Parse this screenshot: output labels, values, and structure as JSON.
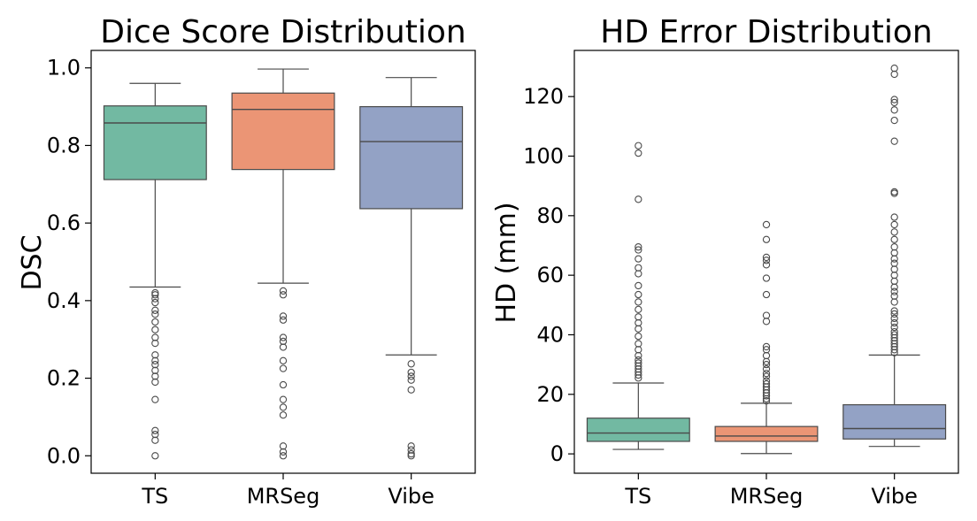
{
  "chart_data": [
    {
      "type": "box",
      "title": "Dice Score Distribution",
      "xlabel": "",
      "ylabel": "DSC",
      "ylim": [
        -0.045,
        1.045
      ],
      "yticks": [
        0.0,
        0.2,
        0.4,
        0.6,
        0.8,
        1.0
      ],
      "ytick_labels": [
        "0.0",
        "0.2",
        "0.4",
        "0.6",
        "0.8",
        "1.0"
      ],
      "categories": [
        "TS",
        "MRSeg",
        "Vibe"
      ],
      "colors": [
        "#72b9a2",
        "#eb9575",
        "#93a2c5"
      ],
      "series": [
        {
          "name": "TS",
          "min": 0.435,
          "q1": 0.712,
          "median": 0.858,
          "q3": 0.902,
          "max": 0.96,
          "outliers": [
            0.42,
            0.415,
            0.405,
            0.395,
            0.375,
            0.365,
            0.345,
            0.325,
            0.305,
            0.29,
            0.26,
            0.245,
            0.235,
            0.22,
            0.205,
            0.19,
            0.145,
            0.065,
            0.055,
            0.04,
            0.0
          ]
        },
        {
          "name": "MRSeg",
          "min": 0.445,
          "q1": 0.738,
          "median": 0.893,
          "q3": 0.935,
          "max": 0.997,
          "outliers": [
            0.425,
            0.415,
            0.36,
            0.35,
            0.305,
            0.295,
            0.28,
            0.245,
            0.225,
            0.183,
            0.145,
            0.125,
            0.105,
            0.025,
            0.01,
            0.0
          ]
        },
        {
          "name": "Vibe",
          "min": 0.26,
          "q1": 0.637,
          "median": 0.81,
          "q3": 0.9,
          "max": 0.975,
          "outliers": [
            0.237,
            0.215,
            0.205,
            0.195,
            0.17,
            0.025,
            0.015,
            0.005,
            0.0
          ]
        }
      ]
    },
    {
      "type": "box",
      "title": "HD Error Distribution",
      "xlabel": "",
      "ylabel": "HD (mm)",
      "ylim": [
        -6.5,
        135.5
      ],
      "yticks": [
        0,
        20,
        40,
        60,
        80,
        100,
        120
      ],
      "ytick_labels": [
        "0",
        "20",
        "40",
        "60",
        "80",
        "100",
        "120"
      ],
      "categories": [
        "TS",
        "MRSeg",
        "Vibe"
      ],
      "colors": [
        "#72b9a2",
        "#eb9575",
        "#93a2c5"
      ],
      "series": [
        {
          "name": "TS",
          "min": 1.5,
          "q1": 4.2,
          "median": 7.0,
          "q3": 12.0,
          "max": 23.8,
          "outliers": [
            103.5,
            101.0,
            85.5,
            69.5,
            68.5,
            65.5,
            62.5,
            60.5,
            56.5,
            53.5,
            51.0,
            48.5,
            46.0,
            44.0,
            42.0,
            39.5,
            37.0,
            35.0,
            33.0,
            31.5,
            30.5,
            29.5,
            28.5,
            27.5,
            26.5,
            25.5
          ]
        },
        {
          "name": "MRSeg",
          "min": 0.1,
          "q1": 4.2,
          "median": 6.0,
          "q3": 9.2,
          "max": 17.0,
          "outliers": [
            77.0,
            72.0,
            66.0,
            65.0,
            63.5,
            59.0,
            53.5,
            46.5,
            44.5,
            36.0,
            35.0,
            33.0,
            31.0,
            30.0,
            28.5,
            27.0,
            26.0,
            24.5,
            23.5,
            22.5,
            21.5,
            20.5,
            19.5,
            18.5,
            17.8
          ]
        },
        {
          "name": "Vibe",
          "min": 2.5,
          "q1": 5.0,
          "median": 8.5,
          "q3": 16.5,
          "max": 33.2,
          "outliers": [
            129.5,
            127.5,
            119.0,
            118.0,
            115.5,
            112.0,
            105.0,
            88.0,
            87.5,
            79.5,
            77.0,
            74.5,
            72.0,
            69.5,
            67.5,
            65.5,
            64.0,
            62.0,
            60.0,
            58.0,
            56.0,
            54.5,
            53.0,
            51.0,
            48.0,
            47.0,
            45.5,
            44.0,
            42.5,
            41.0,
            40.0,
            39.0,
            38.0,
            37.0,
            36.0,
            35.0,
            34.0
          ]
        }
      ]
    }
  ]
}
